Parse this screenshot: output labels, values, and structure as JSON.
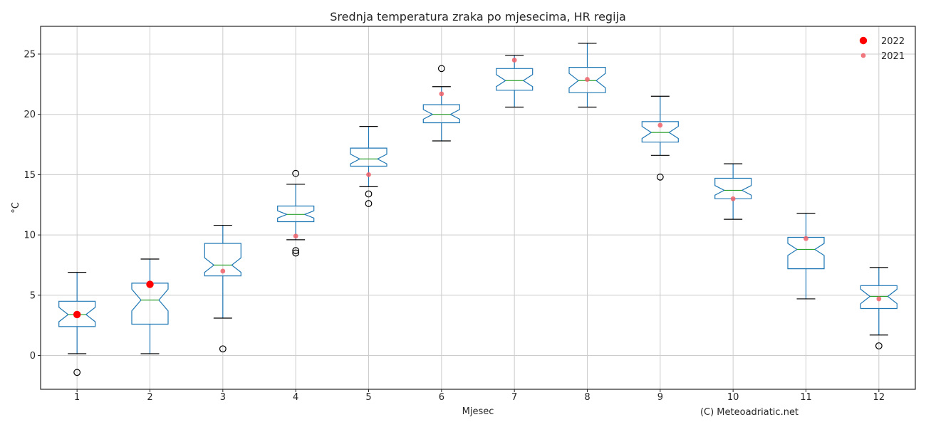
{
  "chart_data": {
    "type": "boxplot",
    "title": "Srednja temperatura zraka po mjesecima, HR regija",
    "xlabel": "Mjesec",
    "ylabel": "°C",
    "credit": "(C) Meteoadriatic.net",
    "categories": [
      "1",
      "2",
      "3",
      "4",
      "5",
      "6",
      "7",
      "8",
      "9",
      "10",
      "11",
      "12"
    ],
    "ylim": [
      -2.8,
      27.3
    ],
    "yticks": [
      0,
      5,
      10,
      15,
      20,
      25
    ],
    "grid": true,
    "legend_position": "top-right",
    "boxes": [
      {
        "whislo": 0.15,
        "q1": 2.4,
        "med": 3.4,
        "q3": 4.5,
        "whishi": 6.9,
        "notch_lo": 2.8,
        "notch_hi": 4.0,
        "fliers": [
          -1.4
        ]
      },
      {
        "whislo": 0.15,
        "q1": 2.6,
        "med": 4.6,
        "q3": 6.0,
        "whishi": 8.0,
        "notch_lo": 3.7,
        "notch_hi": 5.5,
        "fliers": []
      },
      {
        "whislo": 3.1,
        "q1": 6.6,
        "med": 7.5,
        "q3": 9.3,
        "whishi": 10.8,
        "notch_lo": 6.9,
        "notch_hi": 8.1,
        "fliers": [
          0.55
        ]
      },
      {
        "whislo": 9.6,
        "q1": 11.1,
        "med": 11.7,
        "q3": 12.4,
        "whishi": 14.2,
        "notch_lo": 11.4,
        "notch_hi": 12.0,
        "fliers": [
          15.1,
          8.7,
          8.5
        ]
      },
      {
        "whislo": 14.0,
        "q1": 15.7,
        "med": 16.3,
        "q3": 17.2,
        "whishi": 19.0,
        "notch_lo": 15.9,
        "notch_hi": 16.7,
        "fliers": [
          13.4,
          12.6
        ]
      },
      {
        "whislo": 17.8,
        "q1": 19.3,
        "med": 20.0,
        "q3": 20.8,
        "whishi": 22.3,
        "notch_lo": 19.6,
        "notch_hi": 20.4,
        "fliers": [
          23.8
        ]
      },
      {
        "whislo": 20.6,
        "q1": 22.0,
        "med": 22.8,
        "q3": 23.8,
        "whishi": 24.9,
        "notch_lo": 22.3,
        "notch_hi": 23.3,
        "fliers": []
      },
      {
        "whislo": 20.6,
        "q1": 21.8,
        "med": 22.8,
        "q3": 23.9,
        "whishi": 25.9,
        "notch_lo": 22.2,
        "notch_hi": 23.4,
        "fliers": []
      },
      {
        "whislo": 16.6,
        "q1": 17.7,
        "med": 18.5,
        "q3": 19.4,
        "whishi": 21.5,
        "notch_lo": 18.0,
        "notch_hi": 19.0,
        "fliers": [
          14.8
        ]
      },
      {
        "whislo": 11.3,
        "q1": 13.0,
        "med": 13.7,
        "q3": 14.7,
        "whishi": 15.9,
        "notch_lo": 13.3,
        "notch_hi": 14.1,
        "fliers": []
      },
      {
        "whislo": 4.7,
        "q1": 7.2,
        "med": 8.8,
        "q3": 9.8,
        "whishi": 11.8,
        "notch_lo": 8.3,
        "notch_hi": 9.3,
        "fliers": []
      },
      {
        "whislo": 1.7,
        "q1": 3.9,
        "med": 4.9,
        "q3": 5.8,
        "whishi": 7.3,
        "notch_lo": 4.3,
        "notch_hi": 5.5,
        "fliers": [
          0.8
        ]
      }
    ],
    "series": [
      {
        "name": "2022",
        "color": "#ff0000",
        "marker": "large-dot",
        "x": [
          1,
          2
        ],
        "values": [
          3.4,
          5.9
        ]
      },
      {
        "name": "2021",
        "color": "#f0606a",
        "marker": "small-dot",
        "x": [
          1,
          2,
          3,
          4,
          5,
          6,
          7,
          8,
          9,
          10,
          11,
          12
        ],
        "values": [
          3.4,
          6.0,
          7.0,
          9.9,
          15.0,
          21.7,
          24.5,
          22.9,
          19.1,
          13.0,
          9.7,
          4.7
        ]
      }
    ],
    "colors": {
      "box": "#1f77b4",
      "median": "#2ca02c",
      "whisker_cap": "#000000",
      "grid": "#cccccc",
      "frame": "#262626"
    }
  }
}
